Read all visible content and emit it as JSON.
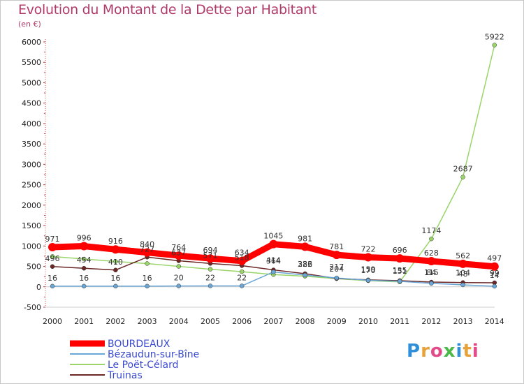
{
  "header": {
    "title": "Evolution du Montant de la Dette par Habitant",
    "subtitle": "(en €)"
  },
  "logo": {
    "text": "Proxiti"
  },
  "chart_data": {
    "type": "line",
    "title": "Evolution du Montant de la Dette par Habitant",
    "ylabel": "(en €)",
    "ylim": [
      -500,
      6000
    ],
    "yticks": [
      -500,
      0,
      500,
      1000,
      1500,
      2000,
      2500,
      3000,
      3500,
      4000,
      4500,
      5000,
      5500,
      6000
    ],
    "grid": false,
    "legend": "bottom-left",
    "x": [
      "2000",
      "2001",
      "2002",
      "2003",
      "2004",
      "2005",
      "2006",
      "2007",
      "2008",
      "2009",
      "2010",
      "2011",
      "2012",
      "2013",
      "2014"
    ],
    "series": [
      {
        "name": "BOURDEAUX",
        "color": "#ff0000",
        "width": 9,
        "labels": true,
        "values": [
          971,
          996,
          916,
          840,
          764,
          694,
          634,
          1045,
          981,
          781,
          722,
          696,
          628,
          562,
          497
        ]
      },
      {
        "name": "Bézaudun-sur-Bîne",
        "color": "#6aa6d6",
        "width": 1.5,
        "labels": true,
        "values": [
          16,
          16,
          16,
          16,
          20,
          22,
          22,
          364,
          286,
          217,
          159,
          135,
          84,
          48,
          14
        ]
      },
      {
        "name": "Le Poët-Célard",
        "color": "#9ad56a",
        "width": 1.5,
        "labels": false,
        "values": [
          742,
          680,
          620,
          570,
          500,
          430,
          370,
          300,
          260,
          200,
          150,
          120,
          1174,
          2687,
          5922
        ]
      },
      {
        "name": "Truinas",
        "color": "#6b2626",
        "width": 1.5,
        "labels": true,
        "values": [
          496,
          454,
          410,
          727,
          637,
          571,
          518,
          414,
          322,
          204,
          170,
          151,
          115,
          104,
          99
        ]
      }
    ]
  }
}
